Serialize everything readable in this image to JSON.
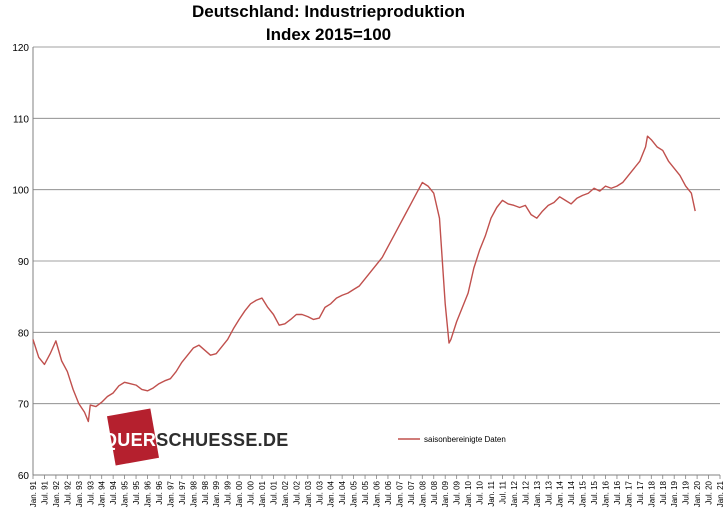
{
  "chart_data": {
    "type": "line",
    "title": "Deutschland: Industrieproduktion",
    "subtitle": "Index 2015=100",
    "ylim": [
      60,
      120
    ],
    "yticks": [
      60,
      70,
      80,
      90,
      100,
      110,
      120
    ],
    "grid": "horizontal",
    "legend_position": "bottom-center",
    "x_tick_labels": [
      "Jan. 91",
      "Jul. 91",
      "Jan. 92",
      "Jul. 92",
      "Jan. 93",
      "Jul. 93",
      "Jan. 94",
      "Jul. 94",
      "Jan. 95",
      "Jul. 95",
      "Jan. 96",
      "Jul. 96",
      "Jan. 97",
      "Jul. 97",
      "Jan. 98",
      "Jul. 98",
      "Jan. 99",
      "Jul. 99",
      "Jan. 00",
      "Jul. 00",
      "Jan. 01",
      "Jul. 01",
      "Jan. 02",
      "Jul. 02",
      "Jan. 03",
      "Jul. 03",
      "Jan. 04",
      "Jul. 04",
      "Jan. 05",
      "Jul. 05",
      "Jan. 06",
      "Jul. 06",
      "Jan. 07",
      "Jul. 07",
      "Jan. 08",
      "Jul. 08",
      "Jan. 09",
      "Jul. 09",
      "Jan. 10",
      "Jul. 10",
      "Jan. 11",
      "Jul. 11",
      "Jan. 12",
      "Jul. 12",
      "Jan. 13",
      "Jul. 13",
      "Jan. 14",
      "Jul. 14",
      "Jan. 15",
      "Jul. 15",
      "Jan. 16",
      "Jul. 16",
      "Jan. 17",
      "Jul. 17",
      "Jan. 18",
      "Jul. 18",
      "Jan. 19",
      "Jul. 19",
      "Jan. 20",
      "Jul. 20",
      "Jan. 21"
    ],
    "series": [
      {
        "name": "saisonbereinigte Daten",
        "color": "#c0504d",
        "points": [
          [
            "1991-01",
            79.0
          ],
          [
            "1991-04",
            76.5
          ],
          [
            "1991-07",
            75.5
          ],
          [
            "1991-10",
            77.0
          ],
          [
            "1992-01",
            78.8
          ],
          [
            "1992-04",
            76.0
          ],
          [
            "1992-07",
            74.5
          ],
          [
            "1992-10",
            72.0
          ],
          [
            "1993-01",
            70.0
          ],
          [
            "1993-04",
            68.8
          ],
          [
            "1993-06",
            67.5
          ],
          [
            "1993-07",
            69.8
          ],
          [
            "1993-10",
            69.6
          ],
          [
            "1994-01",
            70.2
          ],
          [
            "1994-04",
            71.0
          ],
          [
            "1994-07",
            71.5
          ],
          [
            "1994-10",
            72.5
          ],
          [
            "1995-01",
            73.0
          ],
          [
            "1995-04",
            72.8
          ],
          [
            "1995-07",
            72.6
          ],
          [
            "1995-10",
            72.0
          ],
          [
            "1996-01",
            71.8
          ],
          [
            "1996-04",
            72.2
          ],
          [
            "1996-07",
            72.8
          ],
          [
            "1996-10",
            73.2
          ],
          [
            "1997-01",
            73.5
          ],
          [
            "1997-04",
            74.5
          ],
          [
            "1997-07",
            75.8
          ],
          [
            "1997-10",
            76.8
          ],
          [
            "1998-01",
            77.8
          ],
          [
            "1998-04",
            78.2
          ],
          [
            "1998-07",
            77.5
          ],
          [
            "1998-10",
            76.8
          ],
          [
            "1999-01",
            77.0
          ],
          [
            "1999-04",
            78.0
          ],
          [
            "1999-07",
            79.0
          ],
          [
            "1999-10",
            80.5
          ],
          [
            "2000-01",
            81.8
          ],
          [
            "2000-04",
            83.0
          ],
          [
            "2000-07",
            84.0
          ],
          [
            "2000-10",
            84.5
          ],
          [
            "2001-01",
            84.8
          ],
          [
            "2001-04",
            83.5
          ],
          [
            "2001-07",
            82.5
          ],
          [
            "2001-10",
            81.0
          ],
          [
            "2002-01",
            81.2
          ],
          [
            "2002-04",
            81.8
          ],
          [
            "2002-07",
            82.5
          ],
          [
            "2002-10",
            82.5
          ],
          [
            "2003-01",
            82.2
          ],
          [
            "2003-04",
            81.8
          ],
          [
            "2003-07",
            82.0
          ],
          [
            "2003-10",
            83.5
          ],
          [
            "2004-01",
            84.0
          ],
          [
            "2004-04",
            84.8
          ],
          [
            "2004-07",
            85.2
          ],
          [
            "2004-10",
            85.5
          ],
          [
            "2005-01",
            86.0
          ],
          [
            "2005-04",
            86.5
          ],
          [
            "2005-07",
            87.5
          ],
          [
            "2005-10",
            88.5
          ],
          [
            "2006-01",
            89.5
          ],
          [
            "2006-04",
            90.5
          ],
          [
            "2006-07",
            92.0
          ],
          [
            "2006-10",
            93.5
          ],
          [
            "2007-01",
            95.0
          ],
          [
            "2007-04",
            96.5
          ],
          [
            "2007-07",
            98.0
          ],
          [
            "2007-10",
            99.5
          ],
          [
            "2008-01",
            101.0
          ],
          [
            "2008-04",
            100.5
          ],
          [
            "2008-07",
            99.5
          ],
          [
            "2008-10",
            96.0
          ],
          [
            "2009-01",
            84.0
          ],
          [
            "2009-03",
            78.5
          ],
          [
            "2009-04",
            79.0
          ],
          [
            "2009-07",
            81.5
          ],
          [
            "2009-10",
            83.5
          ],
          [
            "2010-01",
            85.5
          ],
          [
            "2010-04",
            89.0
          ],
          [
            "2010-07",
            91.5
          ],
          [
            "2010-10",
            93.5
          ],
          [
            "2011-01",
            96.0
          ],
          [
            "2011-04",
            97.5
          ],
          [
            "2011-07",
            98.5
          ],
          [
            "2011-10",
            98.0
          ],
          [
            "2012-01",
            97.8
          ],
          [
            "2012-04",
            97.5
          ],
          [
            "2012-07",
            97.8
          ],
          [
            "2012-10",
            96.5
          ],
          [
            "2013-01",
            96.0
          ],
          [
            "2013-04",
            97.0
          ],
          [
            "2013-07",
            97.8
          ],
          [
            "2013-10",
            98.2
          ],
          [
            "2014-01",
            99.0
          ],
          [
            "2014-04",
            98.5
          ],
          [
            "2014-07",
            98.0
          ],
          [
            "2014-10",
            98.8
          ],
          [
            "2015-01",
            99.2
          ],
          [
            "2015-04",
            99.5
          ],
          [
            "2015-07",
            100.2
          ],
          [
            "2015-10",
            99.8
          ],
          [
            "2016-01",
            100.5
          ],
          [
            "2016-04",
            100.2
          ],
          [
            "2016-07",
            100.5
          ],
          [
            "2016-10",
            101.0
          ],
          [
            "2017-01",
            102.0
          ],
          [
            "2017-04",
            103.0
          ],
          [
            "2017-07",
            104.0
          ],
          [
            "2017-10",
            106.0
          ],
          [
            "2017-11",
            107.5
          ],
          [
            "2018-01",
            107.0
          ],
          [
            "2018-04",
            106.0
          ],
          [
            "2018-07",
            105.5
          ],
          [
            "2018-10",
            104.0
          ],
          [
            "2019-01",
            103.0
          ],
          [
            "2019-04",
            102.0
          ],
          [
            "2019-07",
            100.5
          ],
          [
            "2019-10",
            99.5
          ],
          [
            "2019-12",
            97.0
          ]
        ]
      }
    ]
  },
  "watermark": {
    "part1": "QUER",
    "part2": "SCHUESSE.DE",
    "box_color": "#b5202e"
  }
}
